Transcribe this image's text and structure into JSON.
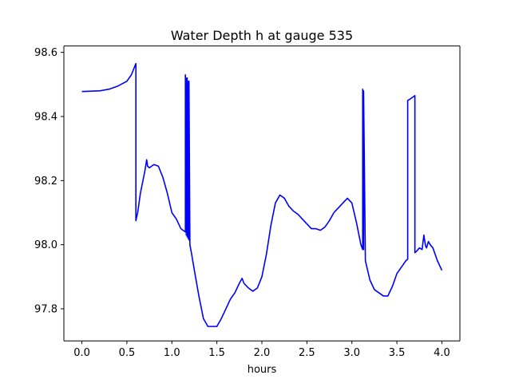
{
  "chart_data": {
    "type": "line",
    "title": "Water Depth h at gauge 535",
    "xlabel": "hours",
    "ylabel": "",
    "xlim": [
      -0.2,
      4.2
    ],
    "ylim": [
      97.7,
      98.62
    ],
    "xticks": [
      0.0,
      0.5,
      1.0,
      1.5,
      2.0,
      2.5,
      3.0,
      3.5,
      4.0
    ],
    "xtick_labels": [
      "0.0",
      "0.5",
      "1.0",
      "1.5",
      "2.0",
      "2.5",
      "3.0",
      "3.5",
      "4.0"
    ],
    "yticks": [
      97.8,
      98.0,
      98.2,
      98.4,
      98.6
    ],
    "ytick_labels": [
      "97.8",
      "98.0",
      "98.2",
      "98.4",
      "98.6"
    ],
    "grid": false,
    "series": [
      {
        "color": "#0000ff",
        "x": [
          0.0,
          0.2,
          0.3,
          0.4,
          0.5,
          0.55,
          0.6,
          0.6,
          0.62,
          0.65,
          0.7,
          0.72,
          0.73,
          0.75,
          0.8,
          0.85,
          0.9,
          0.95,
          1.0,
          1.05,
          1.1,
          1.15,
          1.15,
          1.16,
          1.16,
          1.17,
          1.17,
          1.18,
          1.18,
          1.19,
          1.19,
          1.2,
          1.2,
          1.22,
          1.25,
          1.3,
          1.35,
          1.4,
          1.45,
          1.5,
          1.55,
          1.6,
          1.65,
          1.7,
          1.75,
          1.78,
          1.8,
          1.85,
          1.9,
          1.95,
          2.0,
          2.05,
          2.1,
          2.15,
          2.2,
          2.25,
          2.3,
          2.35,
          2.4,
          2.45,
          2.5,
          2.55,
          2.6,
          2.65,
          2.7,
          2.75,
          2.8,
          2.85,
          2.9,
          2.95,
          3.0,
          3.05,
          3.1,
          3.12,
          3.12,
          3.13,
          3.13,
          3.15,
          3.2,
          3.25,
          3.3,
          3.35,
          3.4,
          3.45,
          3.5,
          3.55,
          3.6,
          3.62,
          3.62,
          3.65,
          3.7,
          3.7,
          3.72,
          3.75,
          3.78,
          3.8,
          3.81,
          3.82,
          3.83,
          3.85,
          3.87,
          3.9,
          3.95,
          4.0
        ],
        "values": [
          98.478,
          98.48,
          98.485,
          98.495,
          98.51,
          98.53,
          98.565,
          98.075,
          98.1,
          98.16,
          98.23,
          98.265,
          98.245,
          98.24,
          98.25,
          98.245,
          98.21,
          98.16,
          98.1,
          98.08,
          98.05,
          98.04,
          98.53,
          98.03,
          98.52,
          98.025,
          98.52,
          98.02,
          98.51,
          98.015,
          98.51,
          98.01,
          98.0,
          97.97,
          97.92,
          97.84,
          97.77,
          97.745,
          97.745,
          97.745,
          97.77,
          97.8,
          97.83,
          97.85,
          97.88,
          97.895,
          97.88,
          97.865,
          97.855,
          97.865,
          97.9,
          97.97,
          98.06,
          98.13,
          98.155,
          98.145,
          98.12,
          98.105,
          98.095,
          98.08,
          98.065,
          98.05,
          98.05,
          98.045,
          98.055,
          98.075,
          98.1,
          98.115,
          98.13,
          98.145,
          98.13,
          98.07,
          98.0,
          97.985,
          98.485,
          97.985,
          98.48,
          97.95,
          97.89,
          97.86,
          97.85,
          97.84,
          97.84,
          97.87,
          97.91,
          97.93,
          97.95,
          97.955,
          98.45,
          98.455,
          98.465,
          97.975,
          97.98,
          97.99,
          97.985,
          98.03,
          98.01,
          97.995,
          97.99,
          98.01,
          98.0,
          97.99,
          97.95,
          97.92
        ]
      }
    ]
  }
}
